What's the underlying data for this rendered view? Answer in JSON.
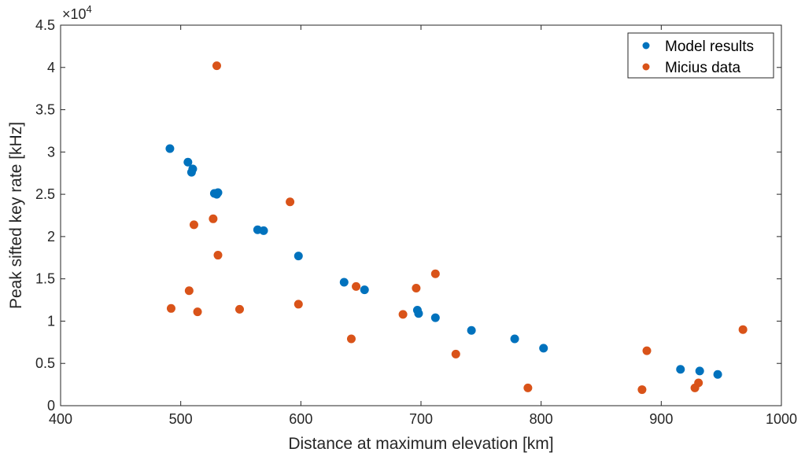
{
  "chart_data": {
    "type": "scatter",
    "xlabel": "Distance at maximum elevation [km]",
    "ylabel": "Peak sifted key rate [kHz]",
    "xlim": [
      400,
      1000
    ],
    "ylim": [
      0,
      45000
    ],
    "xticks": [
      400,
      500,
      600,
      700,
      800,
      900,
      1000
    ],
    "yticks": [
      0,
      5000,
      10000,
      15000,
      20000,
      25000,
      30000,
      35000,
      40000,
      45000
    ],
    "ytick_labels": [
      "0",
      "0.5",
      "1",
      "1.5",
      "2",
      "2.5",
      "3",
      "3.5",
      "4",
      "4.5"
    ],
    "y_exponent_label": "×10",
    "y_exponent_power": "4",
    "grid": false,
    "box": true,
    "legend_position": "top-right",
    "series": [
      {
        "name": "Model results",
        "color": "#0072BD",
        "x": [
          491,
          506,
          510,
          509,
          528,
          530,
          531,
          564,
          569,
          598,
          636,
          653,
          697,
          698,
          712,
          742,
          778,
          802,
          916,
          932,
          947
        ],
        "y": [
          30400,
          28800,
          28000,
          27600,
          25100,
          25000,
          25200,
          20800,
          20700,
          17700,
          14600,
          13700,
          11300,
          10900,
          10400,
          8900,
          7900,
          6800,
          4300,
          4100,
          3700
        ]
      },
      {
        "name": "Micius data",
        "color": "#D95319",
        "x": [
          530,
          591,
          527,
          511,
          531,
          507,
          492,
          514,
          549,
          598,
          646,
          642,
          696,
          712,
          685,
          729,
          789,
          888,
          884,
          931,
          928,
          968
        ],
        "y": [
          40200,
          24100,
          22100,
          21400,
          17800,
          13600,
          11500,
          11100,
          11400,
          12000,
          14100,
          7900,
          13900,
          15600,
          10800,
          6100,
          2100,
          6500,
          1900,
          2700,
          2100,
          9000
        ]
      }
    ]
  }
}
